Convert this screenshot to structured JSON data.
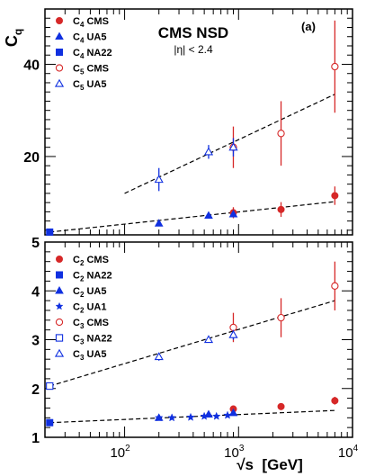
{
  "chart_data": [
    {
      "type": "scatter",
      "panel": "top",
      "ylabel": "C",
      "ylabel_sub": "q",
      "title": "CMS NSD",
      "subtitle": "|η| < 2.4",
      "panel_label": "(a)",
      "xscale": "log",
      "xlim": [
        20,
        10000
      ],
      "ylim": [
        3,
        52
      ],
      "yticks": [
        20,
        40
      ],
      "legend_position": "top-left",
      "colors": {
        "red": "#d62828",
        "blue": "#1030e0",
        "black": "#000000"
      },
      "series": [
        {
          "name": "C",
          "sub": "4",
          "suffix": " CMS",
          "marker": "circle",
          "filled": true,
          "color": "#d62828",
          "x": [
            900,
            2360,
            7000
          ],
          "y": [
            7.8,
            8.5,
            11.5
          ],
          "err": [
            1.2,
            1.6,
            2.0
          ]
        },
        {
          "name": "C",
          "sub": "4",
          "suffix": " UA5",
          "marker": "triangle",
          "filled": true,
          "color": "#1030e0",
          "x": [
            200,
            546,
            900
          ],
          "y": [
            5.5,
            7.2,
            7.5
          ],
          "err": [
            0.4,
            0.5,
            0.6
          ]
        },
        {
          "name": "C",
          "sub": "4",
          "suffix": " NA22",
          "marker": "square",
          "filled": true,
          "color": "#1030e0",
          "x": [
            22
          ],
          "y": [
            3.6
          ],
          "err": [
            0
          ]
        },
        {
          "name": "C",
          "sub": "5",
          "suffix": " CMS",
          "marker": "circle",
          "filled": false,
          "color": "#d62828",
          "x": [
            900,
            2360,
            7000
          ],
          "y": [
            22,
            25,
            39.5
          ],
          "err": [
            4.5,
            7,
            10
          ]
        },
        {
          "name": "C",
          "sub": "5",
          "suffix": " UA5",
          "marker": "triangle",
          "filled": false,
          "color": "#1030e0",
          "x": [
            200,
            546,
            900
          ],
          "y": [
            15,
            21,
            22
          ],
          "err": [
            2.5,
            1.5,
            2.0
          ]
        }
      ],
      "fits": [
        {
          "x": [
            22,
            7000
          ],
          "y": [
            3.6,
            10.2
          ]
        },
        {
          "x": [
            100,
            7000
          ],
          "y": [
            12,
            33.5
          ]
        }
      ]
    },
    {
      "type": "scatter",
      "panel": "bottom",
      "xlabel": "√s  [GeV]",
      "xscale": "log",
      "xlim": [
        20,
        10000
      ],
      "ylim": [
        1,
        5
      ],
      "yticks": [
        1,
        2,
        3,
        4,
        5
      ],
      "xticks": [
        100,
        1000,
        10000
      ],
      "xtick_labels": [
        [
          "10",
          "2"
        ],
        [
          "10",
          "3"
        ],
        [
          "10",
          "4"
        ]
      ],
      "legend_position": "top-left",
      "series": [
        {
          "name": "C",
          "sub": "2",
          "suffix": " CMS",
          "marker": "circle",
          "filled": true,
          "color": "#d62828",
          "x": [
            900,
            2360,
            7000
          ],
          "y": [
            1.58,
            1.63,
            1.75
          ],
          "err": [
            0.03,
            0.05,
            0.08
          ]
        },
        {
          "name": "C",
          "sub": "2",
          "suffix": " NA22",
          "marker": "square",
          "filled": true,
          "color": "#1030e0",
          "x": [
            22
          ],
          "y": [
            1.3
          ],
          "err": [
            0
          ]
        },
        {
          "name": "C",
          "sub": "2",
          "suffix": " UA5",
          "marker": "triangle",
          "filled": true,
          "color": "#1030e0",
          "x": [
            200,
            546,
            900
          ],
          "y": [
            1.4,
            1.47,
            1.5
          ],
          "err": [
            0.02,
            0.02,
            0.03
          ]
        },
        {
          "name": "C",
          "sub": "2",
          "suffix": " UA1",
          "marker": "star",
          "filled": true,
          "color": "#1030e0",
          "x": [
            200,
            260,
            380,
            500,
            640,
            800
          ],
          "y": [
            1.4,
            1.4,
            1.41,
            1.43,
            1.43,
            1.45
          ],
          "err": [
            0,
            0,
            0,
            0,
            0,
            0
          ]
        },
        {
          "name": "C",
          "sub": "3",
          "suffix": " CMS",
          "marker": "circle",
          "filled": false,
          "color": "#d62828",
          "x": [
            900,
            2360,
            7000
          ],
          "y": [
            3.25,
            3.45,
            4.1
          ],
          "err": [
            0.3,
            0.4,
            0.5
          ]
        },
        {
          "name": "C",
          "sub": "3",
          "suffix": " NA22",
          "marker": "square",
          "filled": false,
          "color": "#1030e0",
          "x": [
            22
          ],
          "y": [
            2.05
          ],
          "err": [
            0
          ]
        },
        {
          "name": "C",
          "sub": "3",
          "suffix": " UA5",
          "marker": "triangle",
          "filled": false,
          "color": "#1030e0",
          "x": [
            200,
            546,
            900
          ],
          "y": [
            2.65,
            3.0,
            3.1
          ],
          "err": [
            0.08,
            0.05,
            0.1
          ]
        }
      ],
      "fits": [
        {
          "x": [
            22,
            7000
          ],
          "y": [
            1.3,
            1.55
          ]
        },
        {
          "x": [
            22,
            7000
          ],
          "y": [
            2.05,
            3.8
          ]
        }
      ]
    }
  ]
}
